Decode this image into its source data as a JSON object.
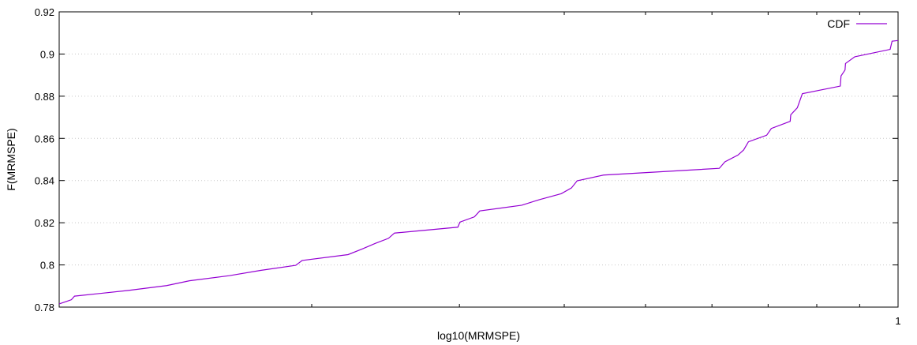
{
  "chart_data": {
    "type": "line",
    "title": "",
    "xlabel": "log10(MRMSPE)",
    "ylabel": "F(MRMSPE)",
    "x_scale": "log",
    "xlim": [
      0.1,
      1
    ],
    "ylim": [
      0.78,
      0.92
    ],
    "y_ticks": [
      "0.78",
      "0.8",
      "0.82",
      "0.84",
      "0.86",
      "0.88",
      "0.9",
      "0.92"
    ],
    "x_tick_labels": [
      {
        "value": 1,
        "label": "1"
      }
    ],
    "grid": true,
    "legend_position": "top-right",
    "line_color": "#9400d3",
    "series": [
      {
        "name": "CDF",
        "points": [
          [
            0.1,
            0.7815
          ],
          [
            0.1017,
            0.7825
          ],
          [
            0.1034,
            0.7835
          ],
          [
            0.1043,
            0.7852
          ],
          [
            0.1209,
            0.7879
          ],
          [
            0.1343,
            0.7902
          ],
          [
            0.143,
            0.7925
          ],
          [
            0.1595,
            0.7949
          ],
          [
            0.1738,
            0.7974
          ],
          [
            0.1914,
            0.7998
          ],
          [
            0.1948,
            0.8021
          ],
          [
            0.221,
            0.8049
          ],
          [
            0.2298,
            0.8076
          ],
          [
            0.2381,
            0.8102
          ],
          [
            0.2469,
            0.8126
          ],
          [
            0.251,
            0.8151
          ],
          [
            0.2987,
            0.8179
          ],
          [
            0.3004,
            0.8203
          ],
          [
            0.3126,
            0.8228
          ],
          [
            0.3172,
            0.8256
          ],
          [
            0.356,
            0.8283
          ],
          [
            0.3732,
            0.8309
          ],
          [
            0.3968,
            0.8338
          ],
          [
            0.408,
            0.8365
          ],
          [
            0.4144,
            0.8399
          ],
          [
            0.4454,
            0.8426
          ],
          [
            0.6122,
            0.8458
          ],
          [
            0.6217,
            0.8489
          ],
          [
            0.6444,
            0.8521
          ],
          [
            0.6545,
            0.8545
          ],
          [
            0.6632,
            0.8584
          ],
          [
            0.6972,
            0.8615
          ],
          [
            0.7062,
            0.8647
          ],
          [
            0.7437,
            0.8681
          ],
          [
            0.7449,
            0.8712
          ],
          [
            0.7584,
            0.8745
          ],
          [
            0.769,
            0.8812
          ],
          [
            0.8533,
            0.8848
          ],
          [
            0.8551,
            0.8896
          ],
          [
            0.8645,
            0.8924
          ],
          [
            0.8657,
            0.8955
          ],
          [
            0.888,
            0.8987
          ],
          [
            0.9785,
            0.9022
          ],
          [
            0.9837,
            0.9061
          ],
          [
            1.0,
            0.9064
          ]
        ]
      }
    ]
  }
}
